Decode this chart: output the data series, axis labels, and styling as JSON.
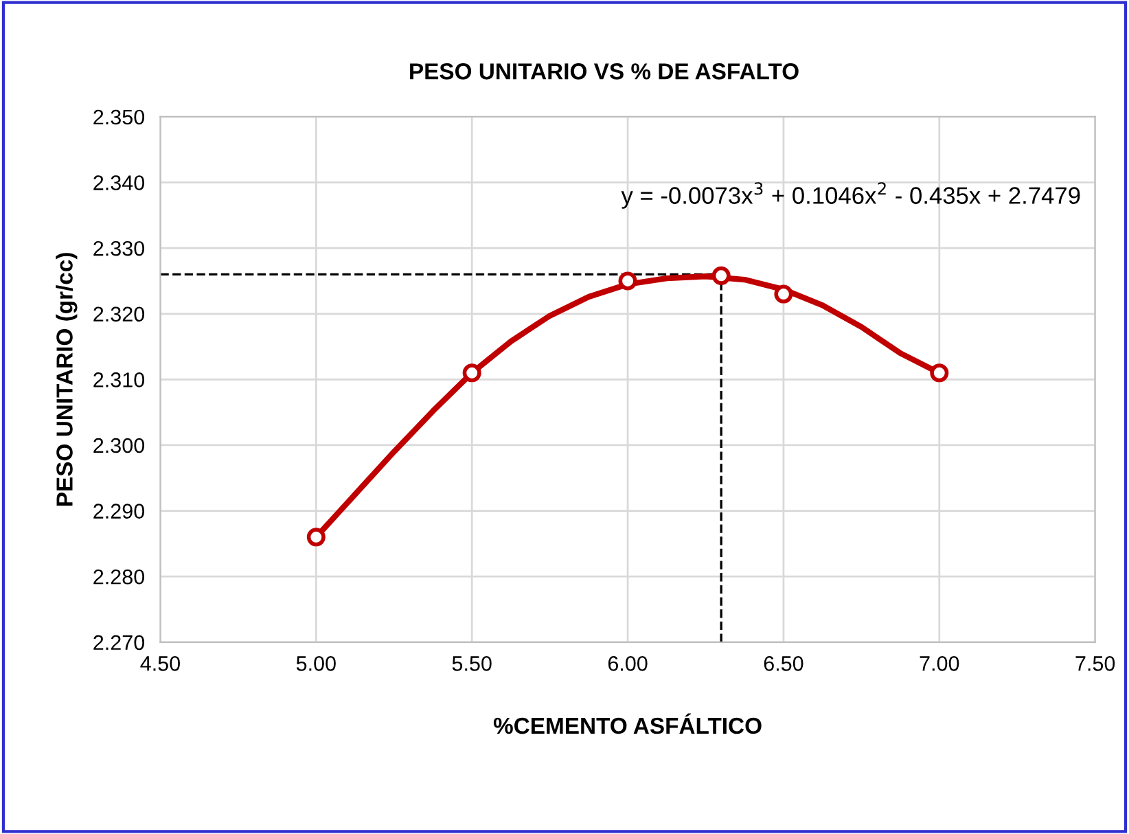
{
  "chart_data": {
    "type": "scatter",
    "title": "PESO UNITARIO VS % DE ASFALTO",
    "xlabel": "%CEMENTO ASFÁLTICO",
    "ylabel": "PESO UNITARIO (gr/cc)",
    "x": [
      5.0,
      5.5,
      6.0,
      6.3,
      6.5,
      7.0
    ],
    "series": [
      {
        "color": "#c00000",
        "marker": "circle",
        "values": [
          2.286,
          2.311,
          2.325,
          2.3258,
          2.323,
          2.311
        ]
      },
      {
        "type": "line",
        "color": "#c00000",
        "x": [
          5.0,
          5.125,
          5.25,
          5.375,
          5.5,
          5.625,
          5.75,
          5.875,
          6.0,
          6.125,
          6.25,
          6.375,
          6.5,
          6.625,
          6.75,
          6.875,
          7.0
        ],
        "values": [
          2.286,
          2.2925,
          2.299,
          2.3052,
          2.311,
          2.3158,
          2.3197,
          2.3226,
          2.3245,
          2.3254,
          2.3257,
          2.3252,
          2.3237,
          2.3213,
          2.318,
          2.314,
          2.311
        ]
      }
    ],
    "annotations": [
      "y = -0.0073x$^{3}$ + 0.1046x$^{2}$ - 0.435x + 2.7479"
    ],
    "ref_lines": [
      {
        "axis": "x",
        "value": 6.3,
        "line_style": "dashed",
        "color": "#000000"
      },
      {
        "axis": "y",
        "value": 2.326,
        "line_style": "dashed",
        "color": "#000000"
      }
    ],
    "xlim": [
      4.5,
      7.5
    ],
    "xticks": [
      {
        "value": 4.5,
        "label": "4.50"
      },
      {
        "value": 5.0,
        "label": "5.00"
      },
      {
        "value": 5.5,
        "label": "5.50"
      },
      {
        "value": 6.0,
        "label": "6.00"
      },
      {
        "value": 6.5,
        "label": "6.50"
      },
      {
        "value": 7.0,
        "label": "7.00"
      },
      {
        "value": 7.5,
        "label": "7.50"
      }
    ],
    "ylim": [
      2.27,
      2.35
    ],
    "yticks": [
      {
        "value": 2.27,
        "label": "2.270"
      },
      {
        "value": 2.28,
        "label": "2.280"
      },
      {
        "value": 2.29,
        "label": "2.290"
      },
      {
        "value": 2.3,
        "label": "2.300"
      },
      {
        "value": 2.31,
        "label": "2.310"
      },
      {
        "value": 2.32,
        "label": "2.320"
      },
      {
        "value": 2.33,
        "label": "2.330"
      },
      {
        "value": 2.34,
        "label": "2.340"
      },
      {
        "value": 2.35,
        "label": "2.350"
      }
    ],
    "grid": true
  }
}
